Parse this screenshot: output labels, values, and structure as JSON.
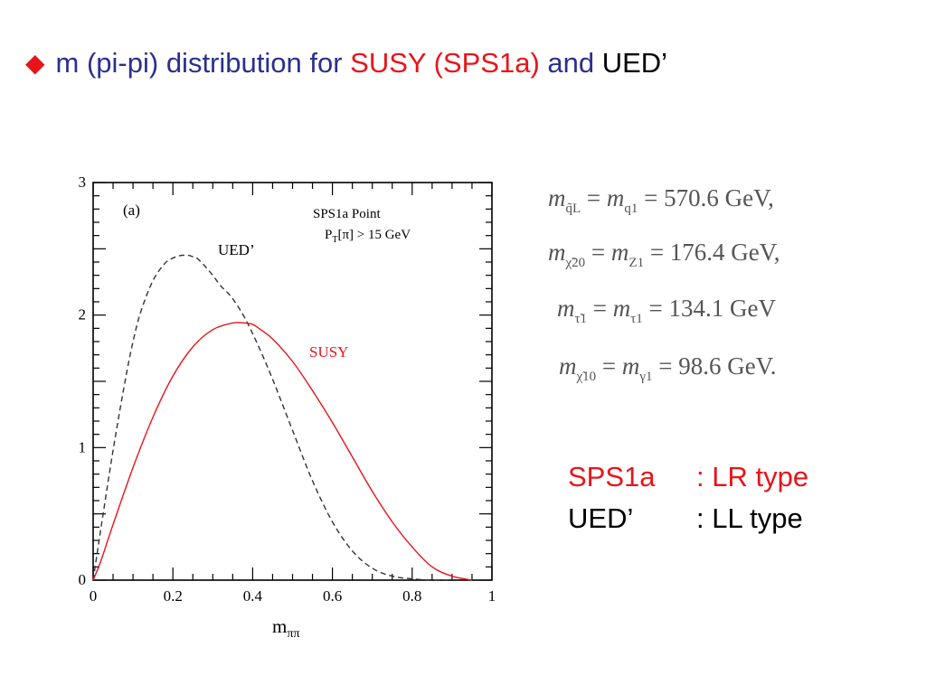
{
  "title": {
    "prefix": "m (pi-pi) distribution for ",
    "susy": "SUSY (SPS1a)",
    "middle": " and ",
    "ued": "UED’",
    "colors": {
      "main": "#2b2f8f",
      "accent": "#e8141a",
      "black": "#000000"
    }
  },
  "chart_data": {
    "type": "line",
    "panel_label": "(a)",
    "xlabel": "m",
    "xlabel_sub": "ππ",
    "xlim": [
      0,
      1
    ],
    "ylim": [
      0,
      3
    ],
    "x_ticks": [
      "0",
      "0.2",
      "0.4",
      "0.6",
      "0.8",
      "1"
    ],
    "y_ticks": [
      "0",
      "1",
      "2",
      "3"
    ],
    "info_line1": "SPS1a Point",
    "info_line2_main": "P",
    "info_line2_sub": "T",
    "info_line2_rest": "[π] > 15 GeV",
    "series": [
      {
        "name": "UED’",
        "style": "dashed",
        "color": "#333333",
        "x": [
          0,
          0.02,
          0.05,
          0.08,
          0.1,
          0.12,
          0.15,
          0.18,
          0.2,
          0.22,
          0.24,
          0.25,
          0.26,
          0.28,
          0.3,
          0.32,
          0.34,
          0.36,
          0.38,
          0.4,
          0.43,
          0.46,
          0.5,
          0.55,
          0.6,
          0.65,
          0.7,
          0.75,
          0.8,
          0.85,
          0.9
        ],
        "y": [
          0,
          0.4,
          0.98,
          1.5,
          1.8,
          2.03,
          2.26,
          2.39,
          2.43,
          2.45,
          2.45,
          2.44,
          2.43,
          2.37,
          2.3,
          2.22,
          2.16,
          2.08,
          1.98,
          1.86,
          1.66,
          1.44,
          1.13,
          0.75,
          0.44,
          0.22,
          0.09,
          0.03,
          0.01,
          0.0,
          0.0
        ]
      },
      {
        "name": "SUSY",
        "style": "solid",
        "color": "#e8141a",
        "x": [
          0,
          0.02,
          0.05,
          0.1,
          0.15,
          0.2,
          0.25,
          0.3,
          0.35,
          0.38,
          0.4,
          0.42,
          0.45,
          0.5,
          0.55,
          0.6,
          0.65,
          0.7,
          0.75,
          0.8,
          0.85,
          0.9,
          0.95
        ],
        "y": [
          0,
          0.15,
          0.42,
          0.85,
          1.23,
          1.54,
          1.76,
          1.89,
          1.94,
          1.94,
          1.93,
          1.89,
          1.82,
          1.65,
          1.43,
          1.19,
          0.93,
          0.67,
          0.44,
          0.25,
          0.1,
          0.03,
          0.0
        ]
      }
    ]
  },
  "masses": [
    {
      "lhs": "m",
      "lhs_sub": "q̃L",
      "rhs": "m",
      "rhs_sub": "q1",
      "value": " = 570.6 GeV,"
    },
    {
      "lhs": "m",
      "lhs_sub": "χ̃20",
      "rhs": "m",
      "rhs_sub": "Z1",
      "value": " = 176.4 GeV,"
    },
    {
      "lhs": "m",
      "lhs_sub": "τ̃1",
      "rhs": "m",
      "rhs_sub": "τ1",
      "value": " = 134.1 GeV"
    },
    {
      "lhs": "m",
      "lhs_sub": "χ̃10",
      "rhs": "m",
      "rhs_sub": "γ1",
      "value": " = 98.6 GeV."
    }
  ],
  "types": [
    {
      "name": "SPS1a",
      "desc": ": LR type",
      "color": "#e8141a"
    },
    {
      "name": "UED’",
      "desc": ": LL type",
      "color": "#000000"
    }
  ]
}
